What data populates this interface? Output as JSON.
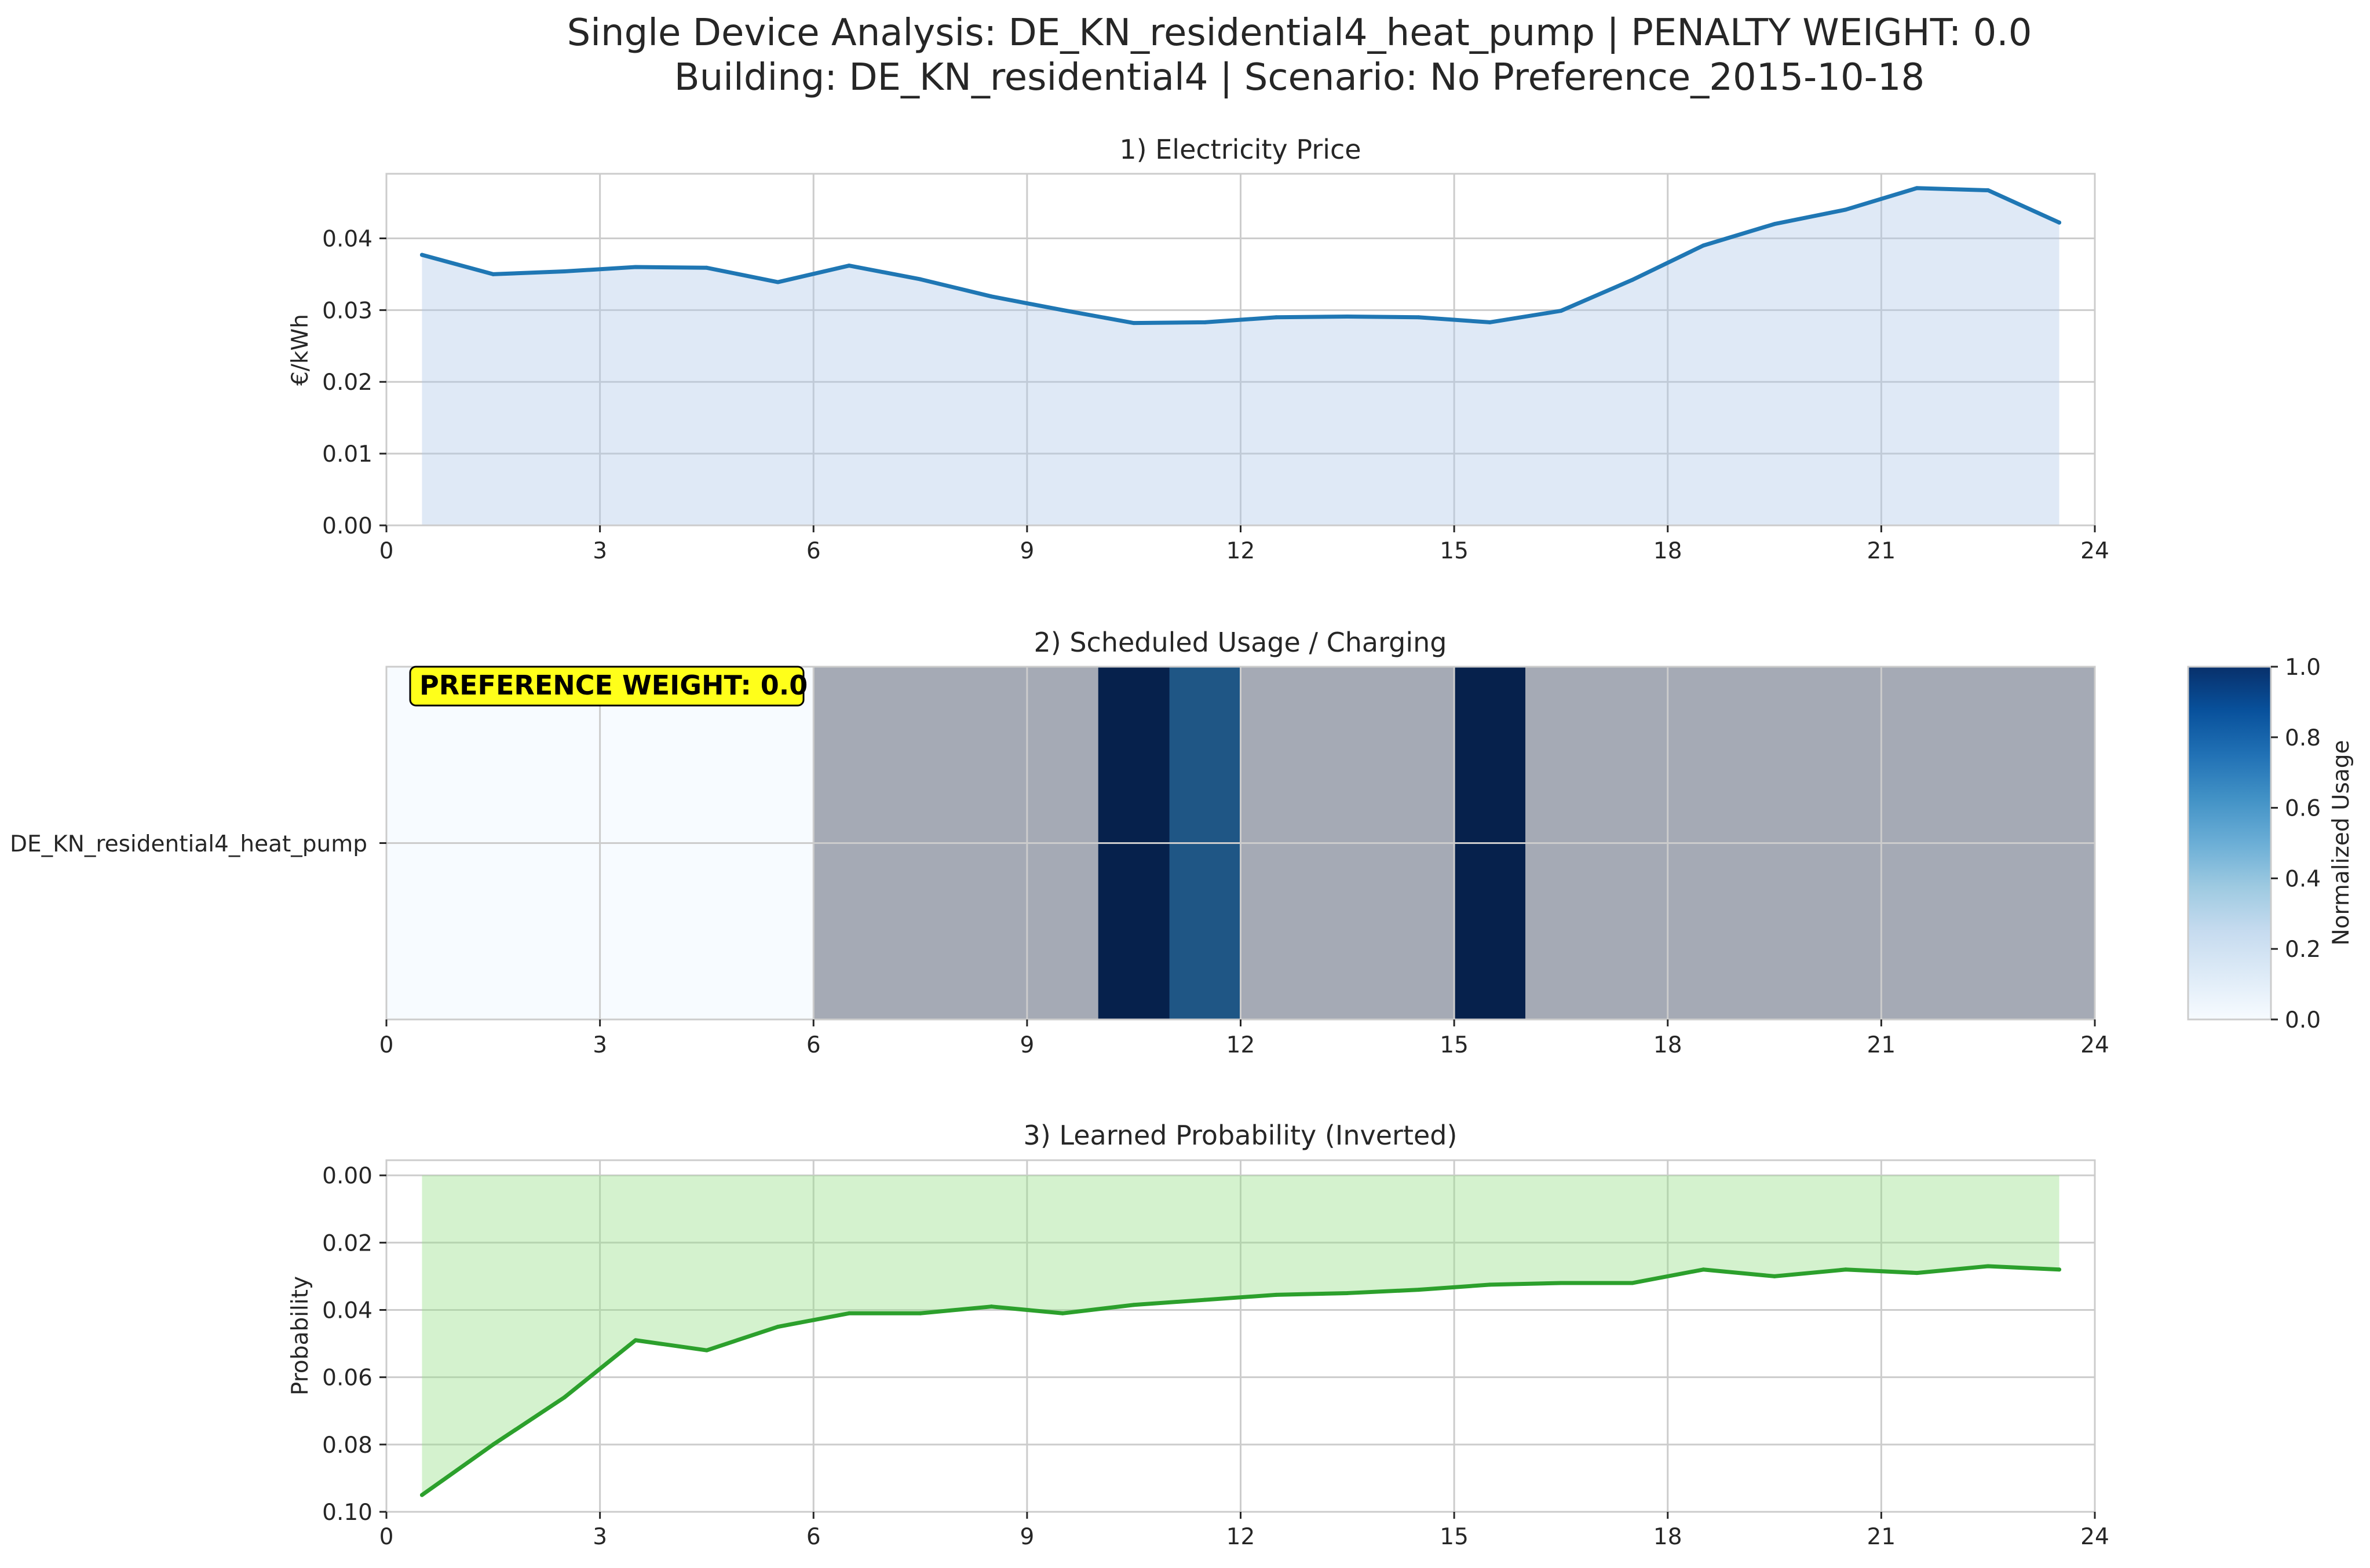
{
  "figure": {
    "title_line1": "Single Device Analysis: DE_KN_residential4_heat_pump | PENALTY WEIGHT: 0.0",
    "title_line2": "Building: DE_KN_residential4 | Scenario: No Preference_2015-10-18"
  },
  "chart_data": [
    {
      "type": "area",
      "title": "1) Electricity Price",
      "xlabel": "",
      "ylabel": "€/kWh",
      "xlim": [
        0,
        24
      ],
      "ylim": [
        0,
        0.049
      ],
      "xticks": [
        "0",
        "3",
        "6",
        "9",
        "12",
        "15",
        "18",
        "21",
        "24"
      ],
      "yticks": [
        "0.00",
        "0.01",
        "0.02",
        "0.03",
        "0.04"
      ],
      "grid": true,
      "color": "#1f77b4",
      "fill_color": "#aec7e8",
      "x": [
        0.5,
        1.5,
        2.5,
        3.5,
        4.5,
        5.5,
        6.5,
        7.5,
        8.5,
        9.5,
        10.5,
        11.5,
        12.5,
        13.5,
        14.5,
        15.5,
        16.5,
        17.5,
        18.5,
        19.5,
        20.5,
        21.5,
        22.5,
        23.5
      ],
      "values": [
        0.0377,
        0.035,
        0.0354,
        0.036,
        0.0359,
        0.0339,
        0.0362,
        0.0343,
        0.0319,
        0.03,
        0.0282,
        0.0283,
        0.029,
        0.0291,
        0.029,
        0.0283,
        0.0299,
        0.0342,
        0.039,
        0.042,
        0.044,
        0.047,
        0.0467,
        0.0422
      ]
    },
    {
      "type": "heatmap",
      "title": "2) Scheduled Usage / Charging",
      "xlim": [
        0,
        24
      ],
      "xticks": [
        "0",
        "3",
        "6",
        "9",
        "12",
        "15",
        "18",
        "21",
        "24"
      ],
      "rows": [
        "DE_KN_residential4_heat_pump"
      ],
      "x": [
        0,
        1,
        2,
        3,
        4,
        5,
        6,
        7,
        8,
        9,
        10,
        11,
        12,
        13,
        14,
        15,
        16,
        17,
        18,
        19,
        20,
        21,
        22,
        23
      ],
      "values": [
        0,
        0,
        0,
        0,
        0,
        0,
        0,
        0,
        0,
        0,
        1,
        0.7,
        0,
        0,
        0,
        1,
        0,
        0,
        0,
        0,
        0,
        0,
        0,
        0
      ],
      "shaded_range": [
        6,
        24
      ],
      "annotation": "PREFERENCE WEIGHT: 0.0",
      "colorbar": {
        "label": "Normalized Usage",
        "range": [
          0,
          1
        ],
        "ticks": [
          "0.0",
          "0.2",
          "0.4",
          "0.6",
          "0.8",
          "1.0"
        ],
        "colormap": "Blues"
      }
    },
    {
      "type": "area",
      "title": "3) Learned Probability (Inverted)",
      "xlabel": "",
      "ylabel": "Probability",
      "xlim": [
        0,
        24
      ],
      "ylim": [
        0.1,
        -0.0045
      ],
      "inverted_y": true,
      "xticks": [
        "0",
        "3",
        "6",
        "9",
        "12",
        "15",
        "18",
        "21",
        "24"
      ],
      "yticks": [
        "0.00",
        "0.02",
        "0.04",
        "0.06",
        "0.08",
        "0.10"
      ],
      "grid": true,
      "color": "#2ca02c",
      "fill_color": "#98df8a",
      "x": [
        0.5,
        1.5,
        2.5,
        3.5,
        4.5,
        5.5,
        6.5,
        7.5,
        8.5,
        9.5,
        10.5,
        11.5,
        12.5,
        13.5,
        14.5,
        15.5,
        16.5,
        17.5,
        18.5,
        19.5,
        20.5,
        21.5,
        22.5,
        23.5
      ],
      "values": [
        0.095,
        0.08,
        0.066,
        0.049,
        0.052,
        0.045,
        0.041,
        0.041,
        0.039,
        0.041,
        0.0385,
        0.037,
        0.0355,
        0.035,
        0.034,
        0.0325,
        0.032,
        0.032,
        0.028,
        0.03,
        0.028,
        0.029,
        0.027,
        0.028
      ]
    }
  ]
}
